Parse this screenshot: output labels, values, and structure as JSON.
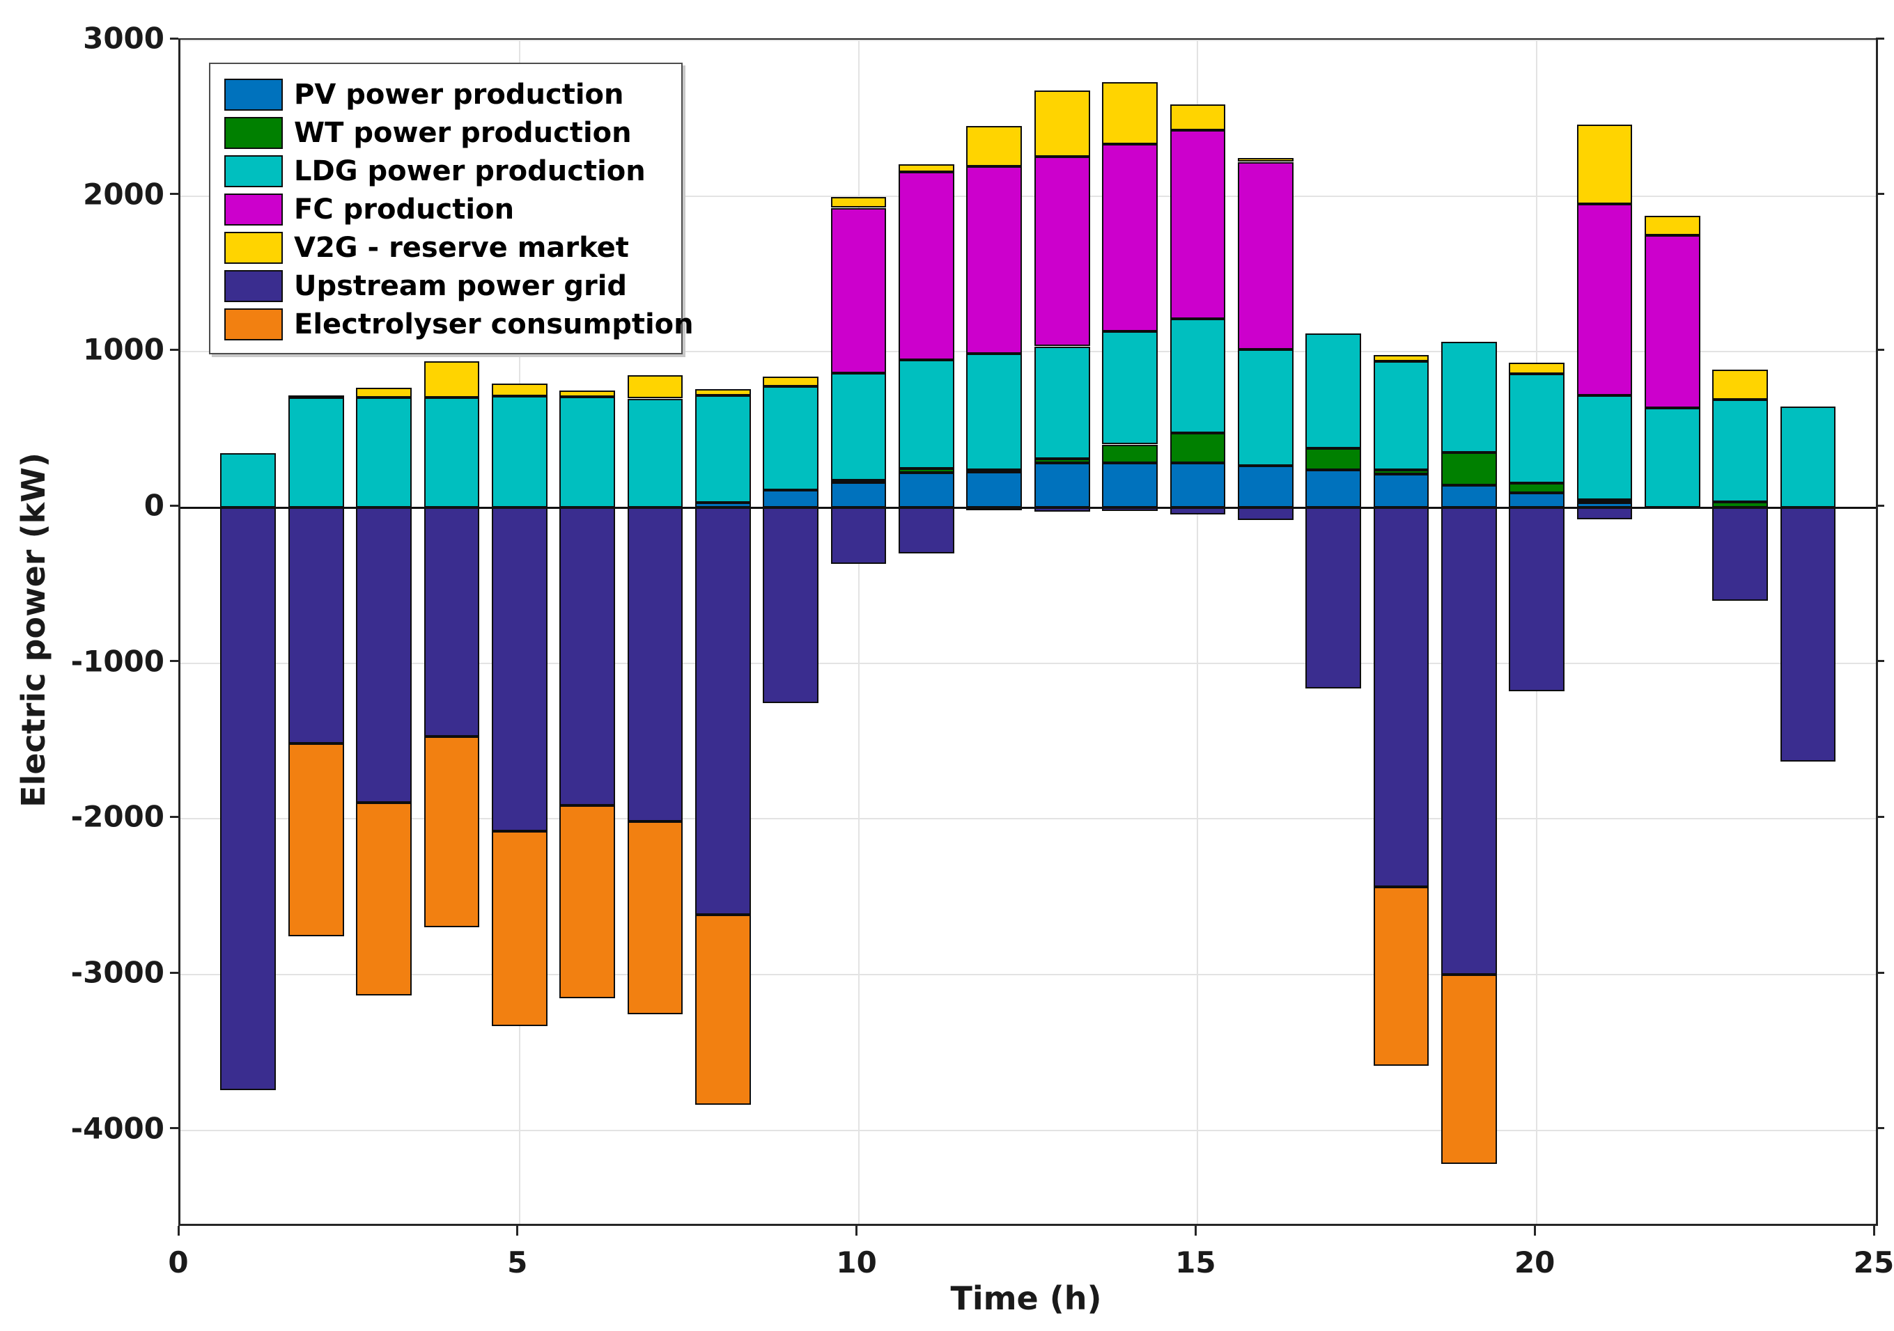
{
  "chart_data": {
    "type": "bar",
    "stacked": true,
    "title": "",
    "xlabel": "Time (h)",
    "ylabel": "Electric power (kW)",
    "x": [
      1,
      2,
      3,
      4,
      5,
      6,
      7,
      8,
      9,
      10,
      11,
      12,
      13,
      14,
      15,
      16,
      17,
      18,
      19,
      20,
      21,
      22,
      23,
      24
    ],
    "xlim": [
      0,
      25
    ],
    "ylim": [
      -4600,
      3000
    ],
    "xticks": [
      0,
      5,
      10,
      15,
      20,
      25
    ],
    "yticks": [
      -4000,
      -3000,
      -2000,
      -1000,
      0,
      1000,
      2000,
      3000
    ],
    "grid": true,
    "bar_width_fraction": 0.82,
    "legend_position": "top-left",
    "series": [
      {
        "name": "PV power production",
        "color": "#0072BD",
        "values": [
          0,
          0,
          0,
          0,
          0,
          0,
          0,
          30,
          110,
          160,
          225,
          230,
          285,
          285,
          285,
          270,
          240,
          215,
          145,
          95,
          30,
          0,
          0,
          0
        ]
      },
      {
        "name": "WT power production",
        "color": "#008000",
        "values": [
          0,
          0,
          0,
          0,
          0,
          0,
          0,
          0,
          0,
          15,
          25,
          10,
          30,
          120,
          195,
          0,
          140,
          25,
          210,
          60,
          20,
          0,
          35,
          0
        ]
      },
      {
        "name": "LDG power production",
        "color": "#00BFBF",
        "values": [
          350,
          705,
          705,
          705,
          715,
          710,
          700,
          690,
          670,
          690,
          700,
          750,
          720,
          725,
          730,
          745,
          740,
          700,
          710,
          705,
          670,
          640,
          660,
          650
        ]
      },
      {
        "name": "FC production",
        "color": "#CC00CC",
        "values": [
          0,
          0,
          0,
          0,
          0,
          0,
          0,
          0,
          0,
          1060,
          1205,
          1200,
          1220,
          1205,
          1215,
          1205,
          0,
          0,
          0,
          0,
          1230,
          1110,
          0,
          0
        ]
      },
      {
        "name": "V2G - reserve market",
        "color": "#FFD400",
        "values": [
          0,
          15,
          65,
          235,
          80,
          40,
          150,
          40,
          60,
          70,
          50,
          260,
          425,
          395,
          165,
          25,
          0,
          40,
          0,
          70,
          510,
          125,
          190,
          0
        ]
      },
      {
        "name": "Upstream power grid",
        "color": "#3A2D8F",
        "values": [
          -3740,
          -1515,
          -1895,
          -1470,
          -2080,
          -1915,
          -2015,
          -2615,
          -1255,
          -360,
          -295,
          -15,
          -25,
          -20,
          -45,
          -80,
          -1160,
          -2435,
          -3000,
          -1180,
          -75,
          0,
          -600,
          -1630
        ]
      },
      {
        "name": "Electrolyser consumption",
        "color": "#F28011",
        "values": [
          0,
          -1240,
          -1240,
          -1225,
          -1250,
          -1235,
          -1240,
          -1220,
          0,
          0,
          0,
          0,
          0,
          0,
          0,
          0,
          0,
          -1150,
          -1215,
          0,
          0,
          0,
          0,
          0
        ]
      }
    ]
  }
}
